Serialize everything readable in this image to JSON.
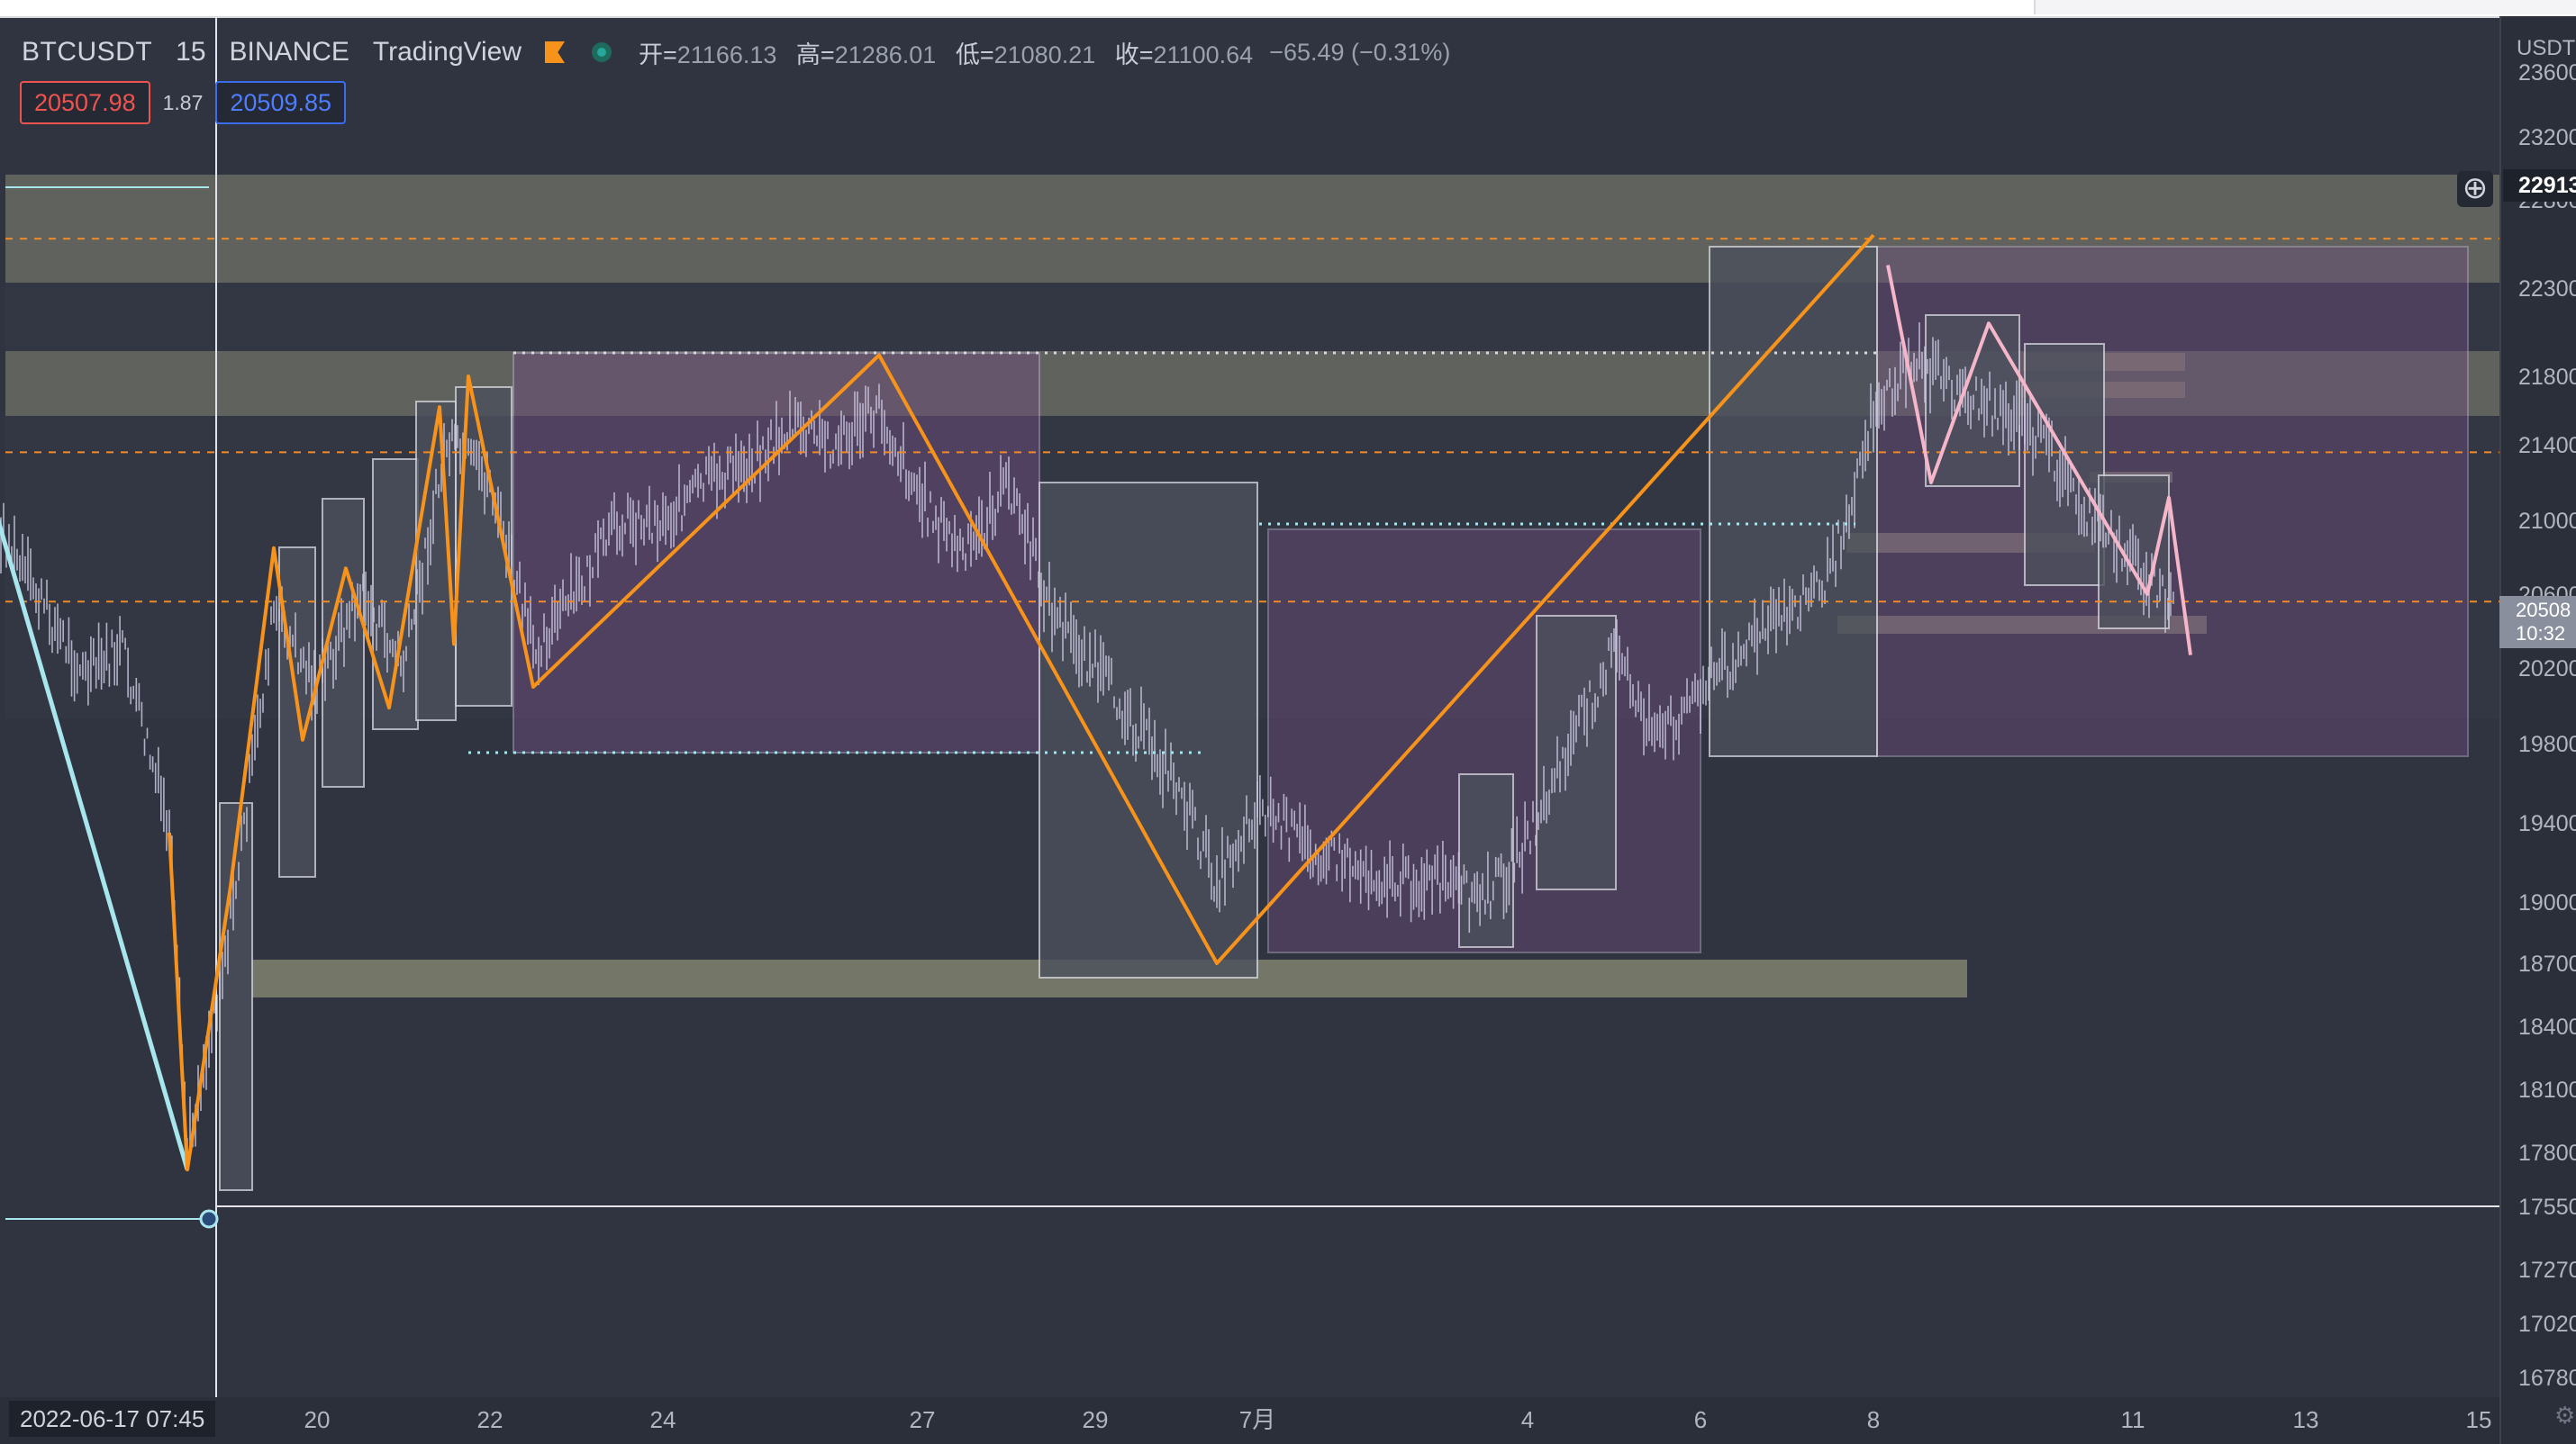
{
  "legend": {
    "symbol": "BTCUSDT",
    "timeframe": "15",
    "exchange": "BINANCE",
    "brand": "TradingView",
    "ohlc": [
      {
        "label": "开=",
        "value": "21166.13"
      },
      {
        "label": "高=",
        "value": "21286.01"
      },
      {
        "label": "低=",
        "value": "21080.21"
      },
      {
        "label": "收=",
        "value": "21100.64"
      }
    ],
    "change": "−65.49 (−0.31%)"
  },
  "quote": {
    "sell": "20507.98",
    "spread": "1.87",
    "buy": "20509.85"
  },
  "crosshair_date": "2022-06-17   07:45",
  "price_tag": {
    "price": "20508",
    "countdown": "10:32"
  },
  "add_icon": "plus-circle-icon",
  "settings_icon": "gear-icon",
  "colors": {
    "background": "#2f3440",
    "candle": "#c9c6df",
    "zigzag": "#f7931a",
    "pink": "#f4b6c8",
    "cyan": "#a8e6ee",
    "zone": "#8c8c76",
    "purple_box": "#6b4c7c"
  },
  "chart_data": {
    "type": "candlestick",
    "symbol": "BTCUSDT",
    "interval": "15",
    "currency": "USDT",
    "x_ticks": [
      "20",
      "22",
      "24",
      "27",
      "29",
      "7月",
      "4",
      "6",
      "8",
      "11",
      "13",
      "15"
    ],
    "y_ticks": [
      "23600",
      "23200",
      "22800",
      "22300",
      "21800",
      "21400",
      "21000",
      "20600",
      "20200",
      "19800",
      "19400",
      "19000",
      "18700",
      "18400",
      "18100",
      "17800",
      "17550",
      "17270",
      "17020",
      "16780"
    ],
    "y_range": [
      16650,
      23700
    ],
    "crosshair_price": "22913",
    "zigzag": [
      [
        "06-18 07:00",
        19350
      ],
      [
        "06-18 12:00",
        17720
      ],
      [
        "06-19 00:00",
        19080
      ],
      [
        "06-19 12:00",
        20850
      ],
      [
        "06-19 20:00",
        19820
      ],
      [
        "06-20 08:00",
        20740
      ],
      [
        "06-20 20:00",
        19990
      ],
      [
        "06-21 10:00",
        21620
      ],
      [
        "06-21 14:00",
        20330
      ],
      [
        "06-21 18:00",
        21800
      ],
      [
        "06-22 12:00",
        20100
      ],
      [
        "06-26 12:00",
        21920
      ],
      [
        "06-30 12:00",
        18700
      ],
      [
        "07-08 00:00",
        22600
      ]
    ],
    "pink_zigzag": [
      [
        "07-08 04:00",
        22430
      ],
      [
        "07-08 16:00",
        21200
      ],
      [
        "07-09 08:00",
        22100
      ],
      [
        "07-11 04:00",
        20600
      ],
      [
        "07-11 10:00",
        21120
      ],
      [
        "07-11 16:00",
        20270
      ]
    ],
    "cyan_leg": [
      [
        "06-16 00:00",
        21500
      ],
      [
        "06-18 12:00",
        17720
      ]
    ],
    "price_series": [
      [
        "06-16 00:00",
        21300
      ],
      [
        "06-16 12:00",
        20800
      ],
      [
        "06-17 00:00",
        20400
      ],
      [
        "06-17 07:45",
        20150
      ],
      [
        "06-17 18:00",
        20300
      ],
      [
        "06-18 07:00",
        19350
      ],
      [
        "06-18 12:00",
        17800
      ],
      [
        "06-19 00:00",
        18900
      ],
      [
        "06-19 12:00",
        20500
      ],
      [
        "06-20 00:00",
        20100
      ],
      [
        "06-20 12:00",
        20600
      ],
      [
        "06-21 00:00",
        20200
      ],
      [
        "06-21 12:00",
        21400
      ],
      [
        "06-22 00:00",
        21200
      ],
      [
        "06-22 12:00",
        20300
      ],
      [
        "06-23 00:00",
        20600
      ],
      [
        "06-23 12:00",
        21000
      ],
      [
        "06-24 00:00",
        21000
      ],
      [
        "06-24 12:00",
        21200
      ],
      [
        "06-25 00:00",
        21300
      ],
      [
        "06-25 12:00",
        21500
      ],
      [
        "06-26 00:00",
        21400
      ],
      [
        "06-26 12:00",
        21600
      ],
      [
        "06-27 00:00",
        21100
      ],
      [
        "06-27 12:00",
        20800
      ],
      [
        "06-28 00:00",
        21200
      ],
      [
        "06-28 12:00",
        20500
      ],
      [
        "06-29 00:00",
        20200
      ],
      [
        "06-29 12:00",
        19900
      ],
      [
        "06-30 00:00",
        19600
      ],
      [
        "06-30 12:00",
        19100
      ],
      [
        "07-01 00:00",
        19500
      ],
      [
        "07-01 12:00",
        19300
      ],
      [
        "07-02 00:00",
        19200
      ],
      [
        "07-02 12:00",
        19100
      ],
      [
        "07-03 00:00",
        19100
      ],
      [
        "07-03 12:00",
        19000
      ],
      [
        "07-04 00:00",
        19300
      ],
      [
        "07-04 12:00",
        19800
      ],
      [
        "07-05 00:00",
        20300
      ],
      [
        "07-05 12:00",
        19800
      ],
      [
        "07-06 00:00",
        20100
      ],
      [
        "07-06 12:00",
        20300
      ],
      [
        "07-07 00:00",
        20500
      ],
      [
        "07-07 12:00",
        20700
      ],
      [
        "07-08 00:00",
        21600
      ],
      [
        "07-08 12:00",
        21900
      ],
      [
        "07-09 00:00",
        21700
      ],
      [
        "07-09 12:00",
        21600
      ],
      [
        "07-10 00:00",
        21400
      ],
      [
        "07-10 12:00",
        21000
      ],
      [
        "07-11 00:00",
        20800
      ],
      [
        "07-11 12:00",
        20500
      ]
    ],
    "h_lines": [
      {
        "price": 22580,
        "style": "dashed-orange"
      },
      {
        "price": 21360,
        "style": "dashed-orange"
      },
      {
        "price": 20560,
        "style": "dashed-orange"
      },
      {
        "price": 17550,
        "style": "solid-white"
      }
    ]
  }
}
